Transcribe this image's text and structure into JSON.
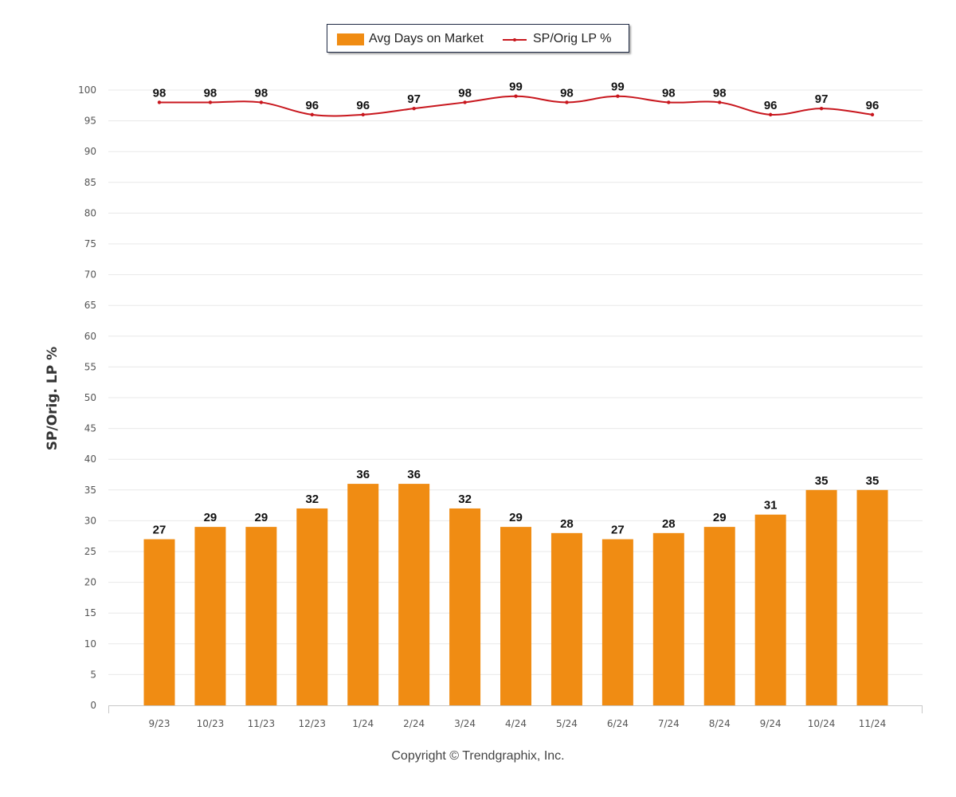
{
  "legend": {
    "bar_label": "Avg Days on Market",
    "line_label": "SP/Orig LP %"
  },
  "copyright": "Copyright © Trendgraphix, Inc.",
  "chart_data": {
    "type": "bar",
    "title": "",
    "ylabel": "SP/Orig. LP %",
    "xlabel": "",
    "ylim": [
      0,
      100
    ],
    "yticks": [
      0,
      5,
      10,
      15,
      20,
      25,
      30,
      35,
      40,
      45,
      50,
      55,
      60,
      65,
      70,
      75,
      80,
      85,
      90,
      95,
      100
    ],
    "grid": true,
    "legend_position": "top-center",
    "categories": [
      "9/23",
      "10/23",
      "11/23",
      "12/23",
      "1/24",
      "2/24",
      "3/24",
      "4/24",
      "5/24",
      "6/24",
      "7/24",
      "8/24",
      "9/24",
      "10/24",
      "11/24"
    ],
    "series": [
      {
        "name": "Avg Days on Market",
        "type": "bar",
        "color": "#f08c13",
        "values": [
          27,
          29,
          29,
          32,
          36,
          36,
          32,
          29,
          28,
          27,
          28,
          29,
          31,
          35,
          35
        ]
      },
      {
        "name": "SP/Orig LP %",
        "type": "line",
        "color": "#c8161d",
        "values": [
          98,
          98,
          98,
          96,
          96,
          97,
          98,
          99,
          98,
          99,
          98,
          98,
          96,
          97,
          96
        ]
      }
    ]
  }
}
